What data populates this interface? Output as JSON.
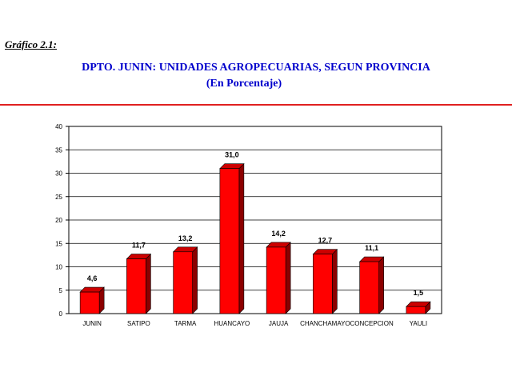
{
  "header": {
    "figure_label": "Gráfico 2.1:",
    "title": "DPTO. JUNIN: UNIDADES AGROPECUARIAS, SEGUN PROVINCIA",
    "subtitle": "(En Porcentaje)"
  },
  "colors": {
    "title": "#0000cc",
    "rule": "#e02020",
    "bar_front": "#ff0000",
    "bar_side": "#8b0000",
    "bar_top": "#cc0000"
  },
  "chart_data": {
    "type": "bar",
    "categories": [
      "JUNIN",
      "SATIPO",
      "TARMA",
      "HUANCAYO",
      "JAUJA",
      "CHANCHAMAYO",
      "CONCEPCION",
      "YAULI"
    ],
    "values": [
      4.6,
      11.7,
      13.2,
      31.0,
      14.2,
      12.7,
      11.1,
      1.5
    ],
    "value_labels": [
      "4,6",
      "11,7",
      "13,2",
      "31,0",
      "14,2",
      "12,7",
      "11,1",
      "1,5"
    ],
    "ylim": [
      0,
      40
    ],
    "yticks": [
      0,
      5,
      10,
      15,
      20,
      25,
      30,
      35,
      40
    ],
    "grid": true,
    "legend": "none"
  }
}
